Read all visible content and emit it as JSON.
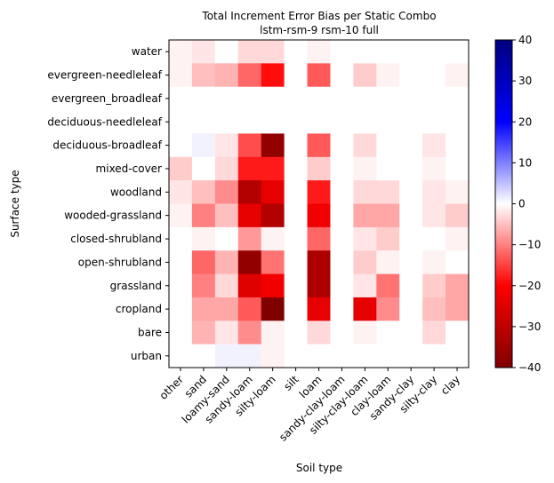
{
  "chart_data": {
    "type": "heatmap",
    "title": "Total Increment Error Bias per Static Combo",
    "subtitle": "lstm-rsm-9 rsm-10 full",
    "xlabel": "Soil type",
    "ylabel": "Surface type",
    "x_categories": [
      "other",
      "sand",
      "loamy-sand",
      "sandy-loam",
      "silty-loam",
      "silt",
      "loam",
      "sandy-clay-loam",
      "silty-clay-loam",
      "clay-loam",
      "sandy-clay",
      "silty-clay",
      "clay"
    ],
    "y_categories": [
      "water",
      "evergreen-needleleaf",
      "evergreen_broadleaf",
      "deciduous-needleleaf",
      "deciduous-broadleaf",
      "mixed-cover",
      "woodland",
      "wooded-grassland",
      "closed-shrubland",
      "open-shrubland",
      "grassland",
      "cropland",
      "bare",
      "urban"
    ],
    "values": [
      [
        -1,
        -2,
        0,
        -3,
        -3,
        0,
        -1,
        0,
        0,
        0,
        0,
        0,
        0
      ],
      [
        -1,
        -5,
        -6,
        -12,
        -19,
        0,
        -13,
        0,
        -4,
        -1,
        0,
        0,
        -1
      ],
      [
        0,
        0,
        0,
        0,
        0,
        0,
        0,
        0,
        0,
        0,
        0,
        0,
        0
      ],
      [
        0,
        0,
        0,
        0,
        0,
        0,
        0,
        0,
        0,
        0,
        0,
        0,
        0
      ],
      [
        0,
        1,
        -2,
        -14,
        -37,
        0,
        -13,
        0,
        -3,
        0,
        0,
        -2,
        0
      ],
      [
        -4,
        0,
        -3,
        -18,
        -18,
        0,
        -4,
        0,
        -1,
        0,
        0,
        -1,
        0
      ],
      [
        -2,
        -5,
        -9,
        -32,
        -24,
        0,
        -18,
        0,
        -3,
        -3,
        0,
        -2,
        -1
      ],
      [
        -1,
        -10,
        -5,
        -24,
        -32,
        0,
        -22,
        0,
        -7,
        -7,
        0,
        -2,
        -4
      ],
      [
        0,
        -1,
        0,
        -8,
        -1,
        0,
        -12,
        0,
        -2,
        -4,
        0,
        0,
        -1
      ],
      [
        0,
        -12,
        -6,
        -37,
        -11,
        0,
        -33,
        0,
        -4,
        -1,
        0,
        -1,
        0
      ],
      [
        0,
        -10,
        -3,
        -25,
        -22,
        0,
        -33,
        0,
        -2,
        -11,
        0,
        -4,
        -7
      ],
      [
        0,
        -7,
        -7,
        -13,
        -40,
        0,
        -24,
        0,
        -24,
        -9,
        0,
        -5,
        -7
      ],
      [
        0,
        -6,
        -2,
        -9,
        -1,
        0,
        -3,
        0,
        -1,
        0,
        0,
        -3,
        0
      ],
      [
        0,
        0,
        1,
        1,
        -1,
        0,
        0,
        0,
        0,
        0,
        0,
        0,
        0
      ]
    ],
    "colormap": "seismic",
    "vmin": -40,
    "vmax": 40,
    "colorbar_ticks": [
      40,
      30,
      20,
      10,
      0,
      -10,
      -20,
      -30,
      -40
    ],
    "colors": {
      "min": "#800000",
      "neg": "#ff0000",
      "zero": "#ffffff",
      "pos": "#0000ff",
      "max": "#000080"
    }
  }
}
